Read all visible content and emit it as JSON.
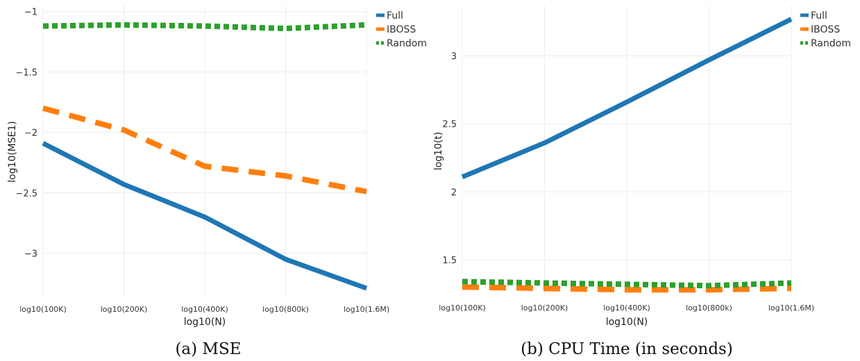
{
  "chart_data": [
    {
      "type": "line",
      "caption": "(a) MSE",
      "xlabel": "log10(N)",
      "ylabel": "log10(MSE1)",
      "categories": [
        "log10(100K)",
        "log10(200K)",
        "log10(400K)",
        "log10(800k)",
        "log10(1.6M)"
      ],
      "ylim": [
        -3.37,
        -0.95
      ],
      "yticks": [
        -1,
        -1.5,
        -2,
        -2.5,
        -3
      ],
      "ytick_labels": [
        "−1",
        "−1.5",
        "−2",
        "−2.5",
        "−3"
      ],
      "grid": true,
      "legend_position": "top-right",
      "series": [
        {
          "name": "Full",
          "color": "#1f77b4",
          "style": "solid",
          "values": [
            -2.09,
            -2.43,
            -2.7,
            -3.05,
            -3.29
          ]
        },
        {
          "name": "IBOSS",
          "color": "#ff7f0e",
          "style": "dash",
          "values": [
            -1.8,
            -1.98,
            -2.28,
            -2.36,
            -2.49
          ]
        },
        {
          "name": "Random",
          "color": "#2ca02c",
          "style": "dot",
          "values": [
            -1.12,
            -1.11,
            -1.12,
            -1.14,
            -1.11
          ]
        }
      ]
    },
    {
      "type": "line",
      "caption": "(b) CPU Time (in seconds)",
      "xlabel": "log10(N)",
      "ylabel": "log10(t)",
      "categories": [
        "log10(100K)",
        "log10(200K)",
        "log10(400K)",
        "log10(800k)",
        "log10(1.6M)"
      ],
      "ylim": [
        1.23,
        3.37
      ],
      "yticks": [
        3,
        2.5,
        2,
        1.5
      ],
      "ytick_labels": [
        "3",
        "2.5",
        "2",
        "1.5"
      ],
      "grid": true,
      "legend_position": "top-right",
      "series": [
        {
          "name": "Full",
          "color": "#1f77b4",
          "style": "solid",
          "values": [
            2.11,
            2.36,
            2.66,
            2.97,
            3.27
          ]
        },
        {
          "name": "IBOSS",
          "color": "#ff7f0e",
          "style": "dash",
          "values": [
            1.3,
            1.29,
            1.28,
            1.28,
            1.29
          ]
        },
        {
          "name": "Random",
          "color": "#2ca02c",
          "style": "dot",
          "values": [
            1.34,
            1.33,
            1.32,
            1.31,
            1.33
          ]
        }
      ]
    }
  ]
}
